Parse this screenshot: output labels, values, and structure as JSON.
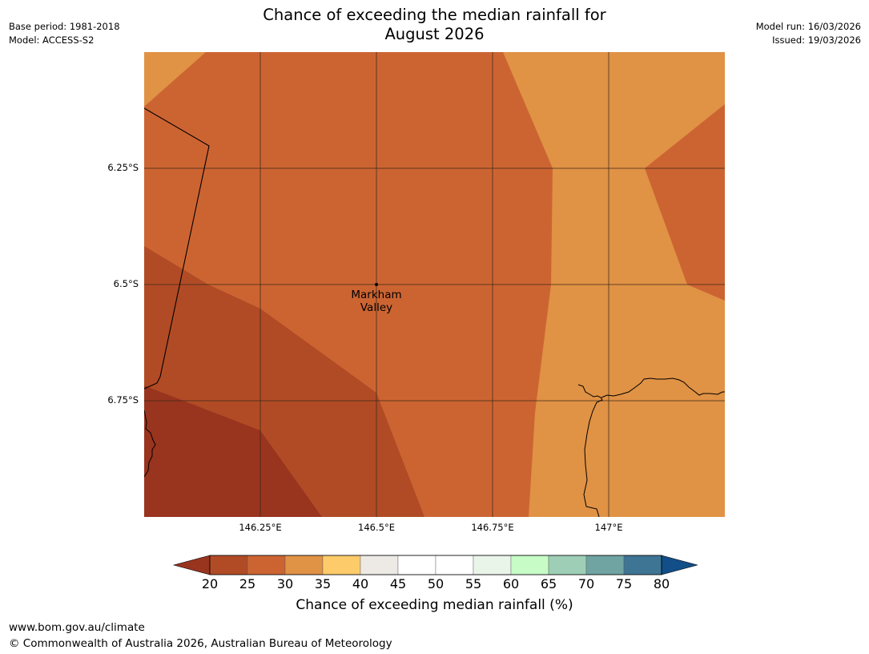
{
  "header": {
    "base_period": "Base period: 1981-2018",
    "model": "Model: ACCESS-S2",
    "model_run": "Model run: 16/03/2026",
    "issued": "Issued: 19/03/2026",
    "title_line1": "Chance of exceeding the median rainfall for",
    "title_line2": "August 2026"
  },
  "map": {
    "lat_labels": [
      "6.25°S",
      "6.5°S",
      "6.75°S"
    ],
    "lon_labels": [
      "146.25°E",
      "146.5°E",
      "146.75°E",
      "147°E"
    ],
    "place_label_line1": "Markham",
    "place_label_line2": "Valley",
    "zone_colors": {
      "20_25": "#99341f",
      "25_30": "#b14b25",
      "30_35": "#cc6432",
      "35_40": "#e09245"
    }
  },
  "colorbar": {
    "ticks": [
      "20",
      "25",
      "30",
      "35",
      "40",
      "45",
      "50",
      "55",
      "60",
      "65",
      "70",
      "75",
      "80"
    ],
    "colors": [
      "#99341f",
      "#b14b25",
      "#cc6432",
      "#e09245",
      "#fecb6a",
      "#ede9e5",
      "#ffffff",
      "#ffffff",
      "#e8f5e8",
      "#c7fcc7",
      "#9ecfb6",
      "#6fa4a3",
      "#3e7595",
      "#124e87"
    ],
    "label": "Chance of exceeding median rainfall (%)"
  },
  "footer": {
    "url": "www.bom.gov.au/climate",
    "copyright": "© Commonwealth of Australia 2026, Australian Bureau of Meteorology"
  }
}
